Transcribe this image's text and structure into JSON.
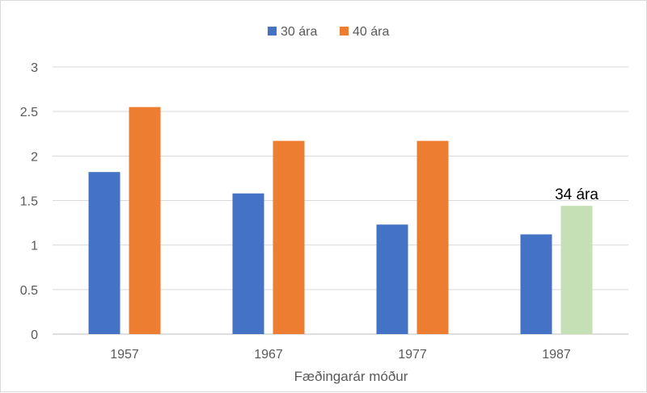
{
  "chart_data": {
    "type": "bar",
    "title": "",
    "xlabel": "Fæðingarár móður",
    "ylabel": "",
    "categories": [
      "1957",
      "1967",
      "1977",
      "1987"
    ],
    "series": [
      {
        "name": "30 ára",
        "color": "#4472C4",
        "values": [
          1.82,
          1.58,
          1.23,
          1.12
        ]
      },
      {
        "name": "40 ára",
        "color": "#ED7D31",
        "values": [
          2.55,
          2.17,
          2.17,
          1.44
        ],
        "point_colors": [
          "#ED7D31",
          "#ED7D31",
          "#ED7D31",
          "#C5E0B4"
        ]
      }
    ],
    "annotations": [
      {
        "text": "34 ára",
        "category": "1987",
        "series": "40 ára"
      }
    ],
    "ylim": [
      0,
      3
    ],
    "yticks": [
      "0",
      "0.5",
      "1",
      "1.5",
      "2",
      "2.5",
      "3"
    ],
    "grid": true,
    "legend": "top"
  }
}
